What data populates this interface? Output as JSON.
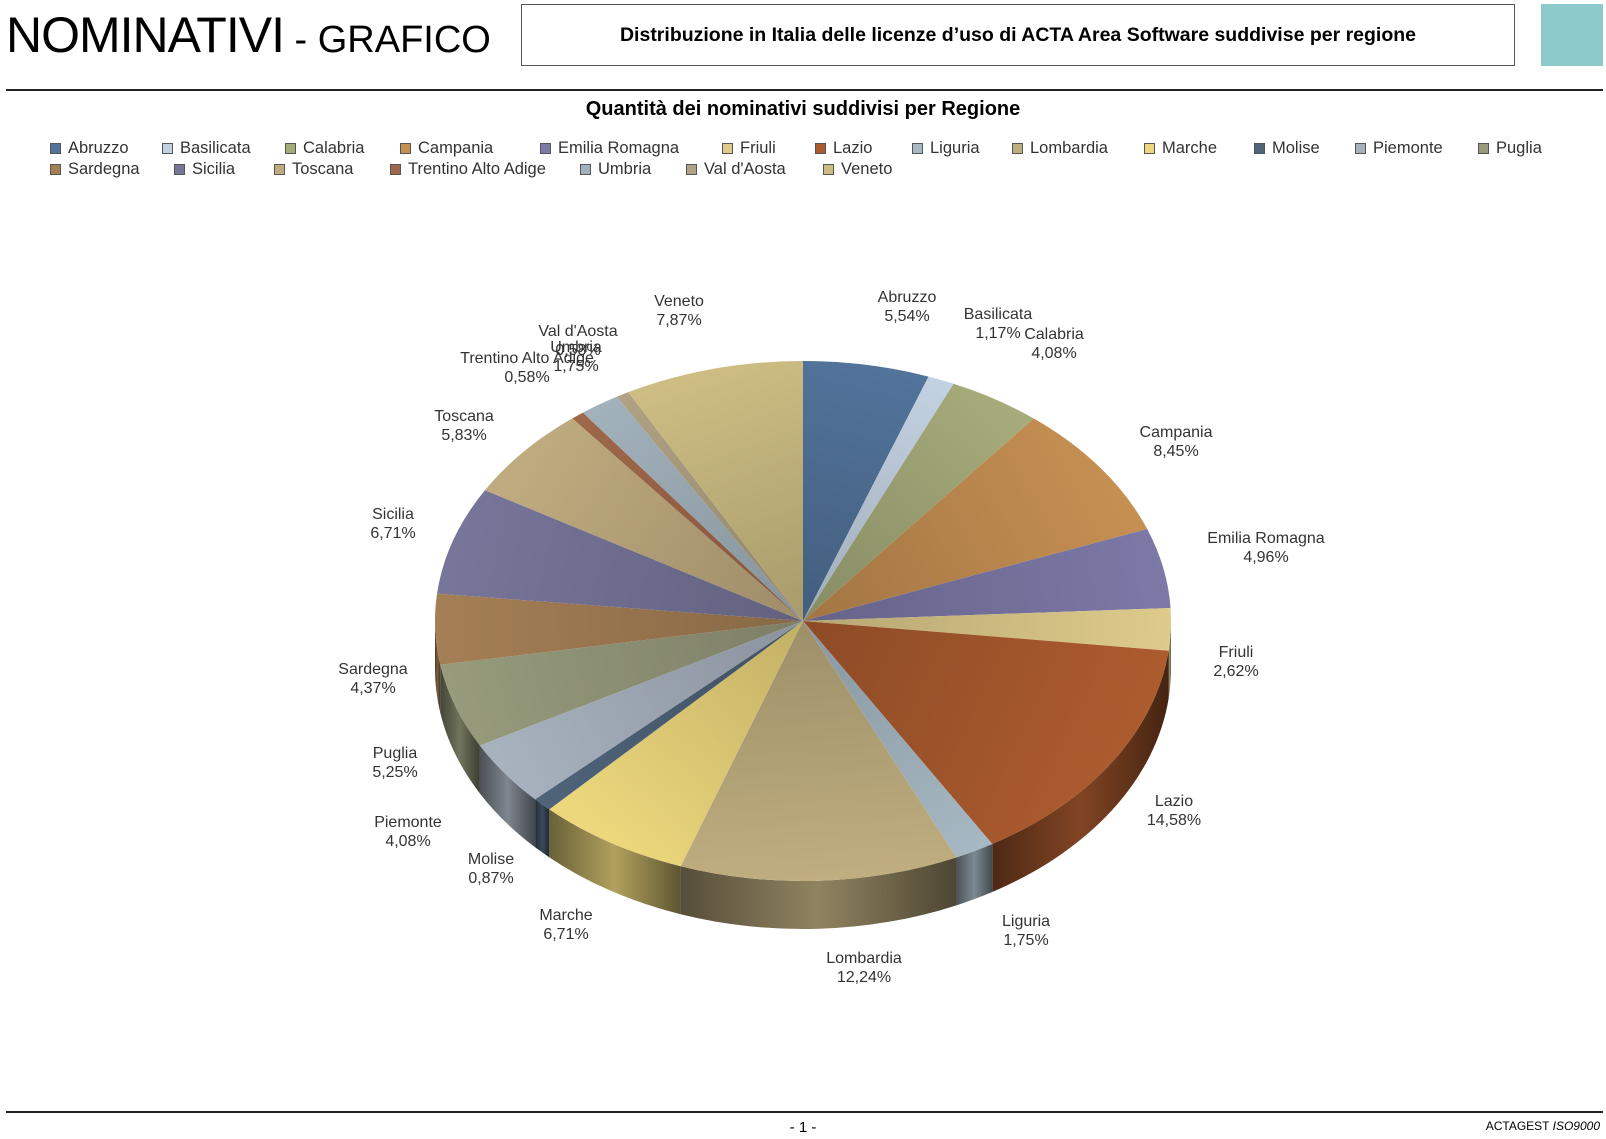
{
  "header": {
    "title_main": "NOMINATIVI",
    "title_suffix": " - GRAFICO",
    "subtitle": "Distribuzione in Italia delle licenze d’uso di ACTA Area Software suddivise per regione",
    "accent_color": "#8ccacb"
  },
  "footer": {
    "page": "- 1 -",
    "brand": "ACTAGEST ",
    "brand_suffix": "ISO9000"
  },
  "chart_data": {
    "type": "pie",
    "title": "Quantità dei nominativi suddivisi per Regione",
    "legend_position": "top",
    "slices": [
      {
        "name": "Abruzzo",
        "value": 5.54,
        "label": "5,54%",
        "color": "#52739a"
      },
      {
        "name": "Basilicata",
        "value": 1.17,
        "label": "1,17%",
        "color": "#c3d2e2"
      },
      {
        "name": "Calabria",
        "value": 4.08,
        "label": "4,08%",
        "color": "#a5ab7a"
      },
      {
        "name": "Campania",
        "value": 8.45,
        "label": "8,45%",
        "color": "#c58f52"
      },
      {
        "name": "Emilia Romagna",
        "value": 4.96,
        "label": "4,96%",
        "color": "#7c79a7"
      },
      {
        "name": "Friuli",
        "value": 2.62,
        "label": "2,62%",
        "color": "#decb8b"
      },
      {
        "name": "Lazio",
        "value": 14.58,
        "label": "14,58%",
        "color": "#ac5b2e"
      },
      {
        "name": "Liguria",
        "value": 1.75,
        "label": "1,75%",
        "color": "#a6b8c3"
      },
      {
        "name": "Lombardia",
        "value": 12.24,
        "label": "12,24%",
        "color": "#c0ae80"
      },
      {
        "name": "Marche",
        "value": 6.71,
        "label": "6,71%",
        "color": "#ecd77c"
      },
      {
        "name": "Molise",
        "value": 0.87,
        "label": "0,87%",
        "color": "#4f6379"
      },
      {
        "name": "Piemonte",
        "value": 4.08,
        "label": "4,08%",
        "color": "#a8b2bf"
      },
      {
        "name": "Puglia",
        "value": 5.25,
        "label": "5,25%",
        "color": "#979b7c"
      },
      {
        "name": "Sardegna",
        "value": 4.37,
        "label": "4,37%",
        "color": "#a57f55"
      },
      {
        "name": "Sicilia",
        "value": 6.71,
        "label": "6,71%",
        "color": "#77769a"
      },
      {
        "name": "Toscana",
        "value": 5.83,
        "label": "5,83%",
        "color": "#bfab7f"
      },
      {
        "name": "Trentino Alto Adige",
        "value": 0.58,
        "label": "0,58%",
        "color": "#a0684a"
      },
      {
        "name": "Umbria",
        "value": 1.75,
        "label": "1,75%",
        "color": "#a2b2bc"
      },
      {
        "name": "Val d'Aosta",
        "value": 0.58,
        "label": "0,58%",
        "color": "#b0a283"
      },
      {
        "name": "Veneto",
        "value": 7.87,
        "label": "7,87%",
        "color": "#cdbd83"
      }
    ]
  }
}
